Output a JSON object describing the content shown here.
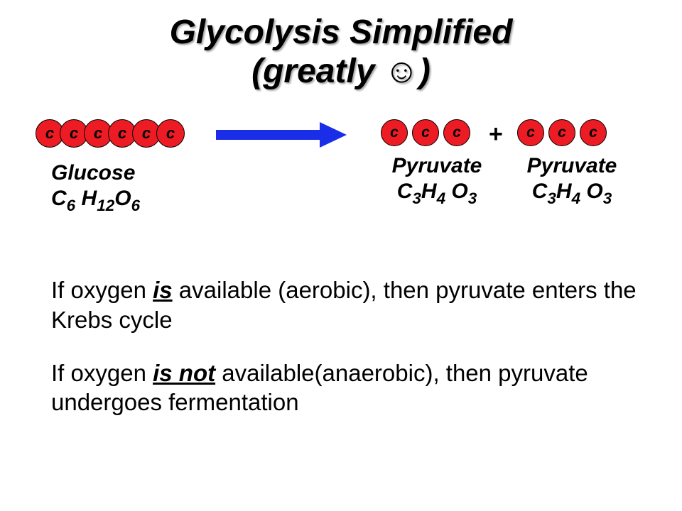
{
  "title": {
    "line1": "Glycolysis Simplified",
    "line2_prefix": "(greatly ",
    "line2_suffix": ")",
    "smiley": "☺",
    "fontsize": 48
  },
  "diagram": {
    "carbon_label": "c",
    "carbon_color": "#ed1c24",
    "carbon_border": "#000000",
    "carbon_text_color": "#000000",
    "arrow_color": "#1a2de8",
    "glucose": {
      "name": "Glucose",
      "formula_C": "C",
      "formula_Csub": "6",
      "formula_H": " H",
      "formula_Hsub": "12",
      "formula_O": "O",
      "formula_Osub": "6",
      "carbon_count": 6,
      "carbon_diameter": 40,
      "carbon_overlap": -6,
      "label_fontsize": 30
    },
    "pyruvate": {
      "name": "Pyruvate",
      "formula_C": "C",
      "formula_Csub": "3",
      "formula_H": "H",
      "formula_Hsub": "4",
      "formula_O": " O",
      "formula_Osub": "3",
      "carbon_count": 3,
      "carbon_diameter": 38,
      "carbon_gap": 6,
      "label_fontsize": 30
    },
    "plus_sign": "+",
    "plus_fontsize": 34
  },
  "text": {
    "p1_a": "If oxygen ",
    "p1_em": "is",
    "p1_b": " available (aerobic), then pyruvate enters the Krebs cycle",
    "p2_a": "If oxygen ",
    "p2_em": "is not",
    "p2_b": " available(anaerobic), then pyruvate undergoes fermentation",
    "fontsize": 33,
    "gap": 34
  }
}
